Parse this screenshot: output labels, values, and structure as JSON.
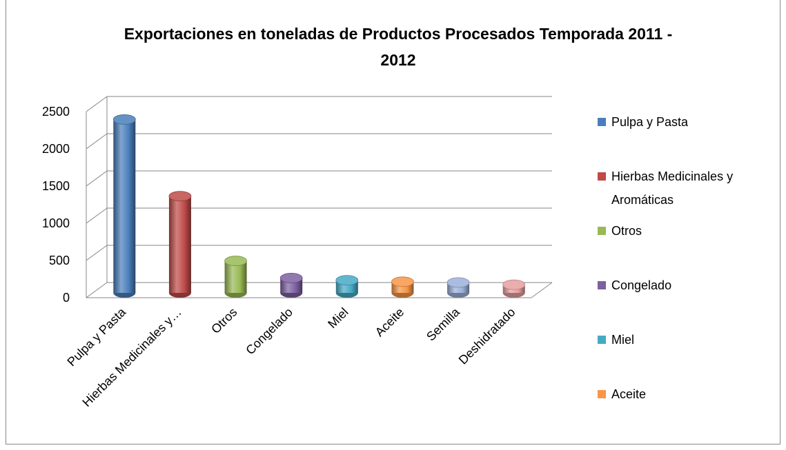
{
  "chart_data": {
    "type": "bar3d",
    "title": "Exportaciones en toneladas de Productos Procesados Temporada 2011 - 2012",
    "categories": [
      "Pulpa y Pasta",
      "Hierbas Medicinales y…",
      "Otros",
      "Congelado",
      "Miel",
      "Aceite",
      "Semilla",
      "Deshidratado"
    ],
    "values": [
      2330,
      1300,
      430,
      200,
      170,
      150,
      140,
      110
    ],
    "colors": [
      "#4a7ebb",
      "#be4b48",
      "#98b954",
      "#7d60a0",
      "#46aac5",
      "#f79646",
      "#9bb0d9",
      "#e6a0a0"
    ],
    "legend": [
      "Pulpa y Pasta",
      "Hierbas Medicinales y Aromáticas",
      "Otros",
      "Congelado",
      "Miel",
      "Aceite"
    ],
    "ylim": [
      0,
      2500
    ],
    "yticks": [
      0,
      500,
      1000,
      1500,
      2000,
      2500
    ],
    "grid": true
  }
}
